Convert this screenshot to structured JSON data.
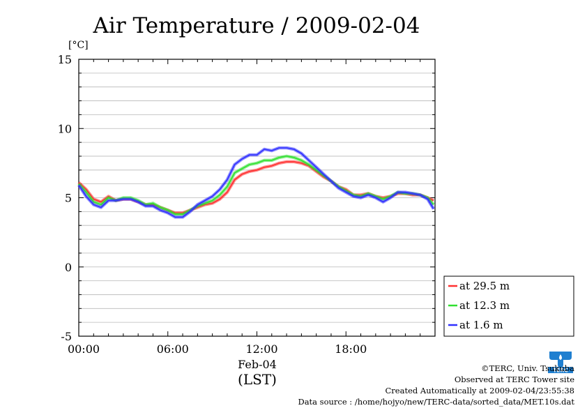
{
  "chart_data": {
    "type": "line",
    "title": "Air Temperature / 2009-02-04",
    "ylabel": "[°C]",
    "ylim": [
      -5,
      15
    ],
    "ytick_labels": [
      "15",
      "10",
      "5",
      "0",
      "-5"
    ],
    "yticks": [
      15,
      10,
      5,
      0,
      -5
    ],
    "xlim": [
      0,
      24
    ],
    "xticks": [
      0,
      6,
      12,
      18
    ],
    "xtick_labels": [
      "00:00",
      "06:00",
      "12:00",
      "18:00"
    ],
    "x_date_label": "Feb-04",
    "x_unit_label": "(LST)",
    "grid": true,
    "legend_position": "bottom-right outside",
    "x": [
      0,
      0.5,
      1,
      1.5,
      2,
      2.5,
      3,
      3.5,
      4,
      4.5,
      5,
      5.5,
      6,
      6.5,
      7,
      7.5,
      8,
      8.5,
      9,
      9.5,
      10,
      10.5,
      11,
      11.5,
      12,
      12.5,
      13,
      13.5,
      14,
      14.5,
      15,
      15.5,
      16,
      16.5,
      17,
      17.5,
      18,
      18.5,
      19,
      19.5,
      20,
      20.5,
      21,
      21.5,
      22,
      22.5,
      23,
      23.5,
      23.9
    ],
    "series": [
      {
        "name": "at 29.5 m",
        "color": "#ff3030",
        "values": [
          6.1,
          5.6,
          4.9,
          4.7,
          5.1,
          4.8,
          4.9,
          4.9,
          4.7,
          4.5,
          4.5,
          4.3,
          4.1,
          3.9,
          3.9,
          4.1,
          4.3,
          4.5,
          4.6,
          4.9,
          5.4,
          6.3,
          6.7,
          6.9,
          7.0,
          7.2,
          7.3,
          7.5,
          7.6,
          7.6,
          7.5,
          7.3,
          6.9,
          6.5,
          6.2,
          5.8,
          5.6,
          5.2,
          5.2,
          5.3,
          5.1,
          5.0,
          5.1,
          5.3,
          5.3,
          5.2,
          5.2,
          5.0,
          4.8
        ]
      },
      {
        "name": "at 12.3 m",
        "color": "#30e030",
        "values": [
          6.0,
          5.4,
          4.7,
          4.5,
          5.0,
          4.8,
          5.0,
          5.0,
          4.8,
          4.5,
          4.6,
          4.3,
          4.1,
          3.8,
          3.8,
          4.1,
          4.4,
          4.6,
          4.8,
          5.2,
          5.8,
          6.8,
          7.1,
          7.4,
          7.5,
          7.7,
          7.7,
          7.9,
          8.0,
          7.9,
          7.7,
          7.4,
          7.0,
          6.6,
          6.2,
          5.8,
          5.5,
          5.2,
          5.1,
          5.3,
          5.1,
          4.9,
          5.1,
          5.4,
          5.3,
          5.3,
          5.2,
          5.0,
          4.5
        ]
      },
      {
        "name": "at 1.6 m",
        "color": "#3030ff",
        "values": [
          5.9,
          5.1,
          4.5,
          4.3,
          4.8,
          4.8,
          4.9,
          4.9,
          4.7,
          4.4,
          4.4,
          4.1,
          3.9,
          3.6,
          3.6,
          4.0,
          4.5,
          4.8,
          5.1,
          5.6,
          6.3,
          7.4,
          7.8,
          8.1,
          8.1,
          8.5,
          8.4,
          8.6,
          8.6,
          8.5,
          8.2,
          7.7,
          7.2,
          6.7,
          6.2,
          5.7,
          5.4,
          5.1,
          5.0,
          5.2,
          5.0,
          4.7,
          5.0,
          5.4,
          5.4,
          5.3,
          5.2,
          4.9,
          4.2
        ]
      }
    ]
  },
  "footer": {
    "copyright": "©TERC, Univ. Tsukuba",
    "observed": "Observed at TERC Tower site",
    "created": "Created Automatically at 2009-02-04/23:55:38",
    "source": "Data source : /home/hojyo/new/TERC-data/sorted_data/MET.10s.dat"
  },
  "logo": {
    "icon": "terc-logo-icon",
    "text": "TERC",
    "color": "#1f7fd0"
  }
}
